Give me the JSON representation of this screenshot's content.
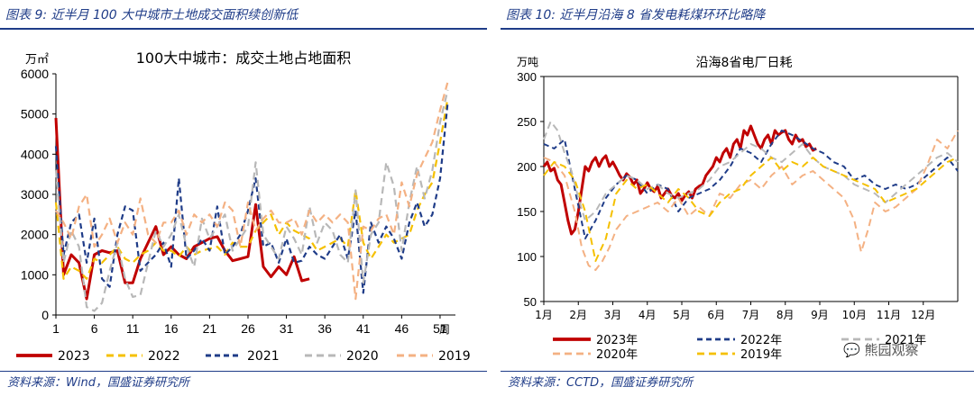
{
  "panels": [
    {
      "title": "图表 9:  近半月 100 大中城市土地成交面积续创新低",
      "source": "资料来源：Wind，国盛证券研究所"
    },
    {
      "title": "图表 10:  近半月沿海 8 省发电耗煤环环比略降",
      "source": "资料来源：CCTD，国盛证券研究所"
    }
  ],
  "watermark": "熊园观察",
  "chart_data": [
    {
      "type": "line",
      "title": "100大中城市：成交土地占地面积",
      "ylabel": "万㎡",
      "xlabel": "周",
      "xlim": [
        1,
        53
      ],
      "ylim": [
        0,
        6000
      ],
      "yticks": [
        0,
        1000,
        2000,
        3000,
        4000,
        5000,
        6000
      ],
      "xticks": [
        1,
        6,
        11,
        16,
        21,
        26,
        31,
        36,
        41,
        46,
        51
      ],
      "grid": false,
      "legend": "bottom",
      "series": [
        {
          "name": "2023",
          "color": "#c00000",
          "dash": "solid",
          "width": 3,
          "x": [
            1,
            2,
            3,
            4,
            5,
            6,
            7,
            8,
            9,
            10,
            11,
            12,
            13,
            14,
            15,
            16,
            17,
            18,
            19,
            20,
            21,
            22,
            23,
            24,
            25,
            26,
            27,
            28,
            29,
            30,
            31,
            32,
            33,
            34
          ],
          "y": [
            4900,
            1000,
            1500,
            1300,
            400,
            1500,
            1600,
            1550,
            1600,
            800,
            800,
            1400,
            1800,
            2200,
            1500,
            1700,
            1500,
            1400,
            1700,
            1800,
            1900,
            1950,
            1600,
            1350,
            1400,
            1450,
            2750,
            1200,
            950,
            1200,
            1000,
            1450,
            850,
            900
          ]
        },
        {
          "name": "2022",
          "color": "#f5c000",
          "dash": "8 5",
          "width": 2.2,
          "x": [
            1,
            2,
            3,
            4,
            5,
            6,
            7,
            8,
            9,
            10,
            11,
            12,
            13,
            14,
            15,
            16,
            17,
            18,
            19,
            20,
            21,
            22,
            23,
            24,
            25,
            26,
            27,
            28,
            29,
            30,
            31,
            32,
            33,
            34,
            35,
            36,
            37,
            38,
            39,
            40,
            41,
            42,
            43,
            44,
            45,
            46,
            47,
            48,
            49,
            50,
            51,
            52
          ],
          "y": [
            2800,
            900,
            1200,
            1100,
            900,
            1400,
            1300,
            1500,
            1700,
            1400,
            1300,
            1500,
            1600,
            1800,
            1600,
            1600,
            1450,
            1700,
            1500,
            1600,
            1650,
            1700,
            1500,
            1800,
            1700,
            1700,
            2100,
            2300,
            2500,
            2000,
            2300,
            2100,
            2000,
            1900,
            1600,
            1700,
            1800,
            1900,
            1700,
            3100,
            1800,
            1400,
            1700,
            2000,
            1800,
            1900,
            2000,
            2600,
            3000,
            3300,
            4300,
            5400
          ]
        },
        {
          "name": "2021",
          "color": "#1f3c88",
          "dash": "6 4",
          "width": 2.2,
          "x": [
            1,
            2,
            3,
            4,
            5,
            6,
            7,
            8,
            9,
            10,
            11,
            12,
            13,
            14,
            15,
            16,
            17,
            18,
            19,
            20,
            21,
            22,
            23,
            24,
            25,
            26,
            27,
            28,
            29,
            30,
            31,
            32,
            33,
            34,
            35,
            36,
            37,
            38,
            39,
            40,
            41,
            42,
            43,
            44,
            45,
            46,
            47,
            48,
            49,
            50,
            51,
            52
          ],
          "y": [
            4200,
            1500,
            2300,
            2500,
            1300,
            2400,
            900,
            700,
            2000,
            2700,
            2600,
            1100,
            1300,
            1500,
            1800,
            1200,
            3400,
            1400,
            1600,
            1900,
            1600,
            2700,
            1500,
            1700,
            2000,
            2600,
            3400,
            1700,
            1800,
            1300,
            1900,
            1300,
            1350,
            1700,
            1500,
            1400,
            1700,
            2000,
            1400,
            2600,
            550,
            2300,
            1800,
            2200,
            1900,
            1400,
            2300,
            2800,
            2200,
            2500,
            3400,
            5300
          ]
        },
        {
          "name": "2020",
          "color": "#b8b8b8",
          "dash": "8 5",
          "width": 2.2,
          "x": [
            1,
            2,
            3,
            4,
            5,
            6,
            7,
            8,
            9,
            10,
            11,
            12,
            13,
            14,
            15,
            16,
            17,
            18,
            19,
            20,
            21,
            22,
            23,
            24,
            25,
            26,
            27,
            28,
            29,
            30,
            31,
            32,
            33,
            34,
            35,
            36,
            37,
            38,
            39,
            40,
            41,
            42,
            43,
            44,
            45,
            46,
            47,
            48,
            49,
            50,
            51,
            52
          ],
          "y": [
            3600,
            1300,
            2100,
            1700,
            200,
            100,
            300,
            1100,
            1800,
            900,
            450,
            500,
            1300,
            2100,
            1700,
            2000,
            2500,
            1700,
            1200,
            2400,
            1900,
            2200,
            2500,
            1600,
            1900,
            2200,
            3800,
            2000,
            1700,
            1400,
            2200,
            1900,
            1500,
            2700,
            1800,
            2300,
            2100,
            1500,
            1300,
            3100,
            800,
            2000,
            2300,
            3800,
            3200,
            1600,
            2800,
            3700,
            2900,
            3600,
            4800,
            5600
          ]
        },
        {
          "name": "2019",
          "color": "#f4b183",
          "dash": "8 5",
          "width": 2.2,
          "x": [
            1,
            2,
            3,
            4,
            5,
            6,
            7,
            8,
            9,
            10,
            11,
            12,
            13,
            14,
            15,
            16,
            17,
            18,
            19,
            20,
            21,
            22,
            23,
            24,
            25,
            26,
            27,
            28,
            29,
            30,
            31,
            32,
            33,
            34,
            35,
            36,
            37,
            38,
            39,
            40,
            41,
            42,
            43,
            44,
            45,
            46,
            47,
            48,
            49,
            50,
            51,
            52
          ],
          "y": [
            2600,
            2300,
            1900,
            2700,
            3000,
            1700,
            2000,
            2400,
            1800,
            2300,
            2000,
            2900,
            2000,
            1800,
            2300,
            2300,
            2600,
            2000,
            2500,
            2300,
            2500,
            2200,
            2800,
            2600,
            1700,
            2800,
            2100,
            2400,
            2600,
            2300,
            2300,
            2400,
            2000,
            2600,
            2300,
            2500,
            2300,
            2500,
            2300,
            400,
            2200,
            2100,
            2400,
            2500,
            2000,
            3300,
            2700,
            3500,
            3900,
            4300,
            5100,
            5800
          ]
        }
      ]
    },
    {
      "type": "line",
      "title": "沿海8省电厂日耗",
      "ylabel": "万吨",
      "xlim": [
        1,
        13
      ],
      "ylim": [
        50,
        300
      ],
      "yticks": [
        50,
        100,
        150,
        200,
        250,
        300
      ],
      "categories": [
        "1月",
        "2月",
        "3月",
        "4月",
        "5月",
        "6月",
        "7月",
        "8月",
        "9月",
        "10月",
        "11月",
        "12月"
      ],
      "grid": false,
      "legend": "bottom",
      "series": [
        {
          "name": "2023年",
          "color": "#c00000",
          "dash": "solid",
          "width": 3,
          "x": [
            1,
            1.1,
            1.2,
            1.3,
            1.4,
            1.5,
            1.6,
            1.7,
            1.8,
            1.9,
            2.0,
            2.1,
            2.2,
            2.3,
            2.4,
            2.5,
            2.6,
            2.7,
            2.8,
            2.9,
            3.0,
            3.1,
            3.2,
            3.3,
            3.4,
            3.5,
            3.6,
            3.7,
            3.8,
            3.9,
            4.0,
            4.1,
            4.2,
            4.3,
            4.4,
            4.5,
            4.6,
            4.7,
            4.8,
            4.9,
            5.0,
            5.1,
            5.2,
            5.3,
            5.4,
            5.5,
            5.6,
            5.7,
            5.8,
            5.9,
            6.0,
            6.1,
            6.2,
            6.3,
            6.4,
            6.5,
            6.6,
            6.7,
            6.8,
            6.9,
            7.0,
            7.1,
            7.2,
            7.3,
            7.4,
            7.5,
            7.6,
            7.7,
            7.8,
            7.9,
            8.0,
            8.1,
            8.2,
            8.3,
            8.4,
            8.5,
            8.6,
            8.7,
            8.8,
            8.9
          ],
          "y": [
            200,
            205,
            195,
            198,
            185,
            180,
            160,
            140,
            125,
            130,
            150,
            175,
            200,
            195,
            205,
            210,
            200,
            208,
            212,
            200,
            205,
            198,
            190,
            185,
            192,
            188,
            180,
            185,
            170,
            175,
            182,
            175,
            172,
            178,
            165,
            170,
            175,
            168,
            165,
            170,
            162,
            168,
            172,
            165,
            175,
            178,
            180,
            190,
            195,
            200,
            210,
            205,
            215,
            220,
            210,
            225,
            230,
            220,
            240,
            235,
            245,
            235,
            225,
            220,
            230,
            235,
            225,
            240,
            235,
            238,
            240,
            230,
            225,
            235,
            228,
            230,
            222,
            225,
            218,
            220
          ]
        },
        {
          "name": "2022年",
          "color": "#1f3c88",
          "dash": "6 4",
          "width": 2,
          "x": [
            1,
            1.3,
            1.6,
            1.9,
            2.2,
            2.5,
            2.8,
            3.1,
            3.4,
            3.7,
            4.0,
            4.3,
            4.6,
            4.9,
            5.2,
            5.5,
            5.8,
            6.1,
            6.4,
            6.7,
            7.0,
            7.3,
            7.6,
            7.9,
            8.2,
            8.5,
            8.8,
            9.1,
            9.4,
            9.7,
            10.0,
            10.3,
            10.6,
            10.9,
            11.2,
            11.5,
            11.8,
            12.1,
            12.4,
            12.7,
            13.0
          ],
          "y": [
            225,
            220,
            230,
            175,
            120,
            140,
            165,
            180,
            190,
            185,
            170,
            180,
            175,
            150,
            165,
            170,
            175,
            185,
            200,
            220,
            215,
            205,
            225,
            240,
            235,
            228,
            220,
            215,
            205,
            200,
            185,
            190,
            180,
            175,
            180,
            175,
            180,
            190,
            200,
            210,
            195
          ]
        },
        {
          "name": "2020年",
          "color": "#f4b183",
          "dash": "8 5",
          "width": 2,
          "x": [
            1,
            1.3,
            1.6,
            1.9,
            2.1,
            2.3,
            2.5,
            2.7,
            2.9,
            3.1,
            3.4,
            3.7,
            4.0,
            4.3,
            4.6,
            4.9,
            5.2,
            5.5,
            5.8,
            6.1,
            6.4,
            6.7,
            7.0,
            7.3,
            7.6,
            7.9,
            8.2,
            8.5,
            8.8,
            9.1,
            9.4,
            9.7,
            10.0,
            10.2,
            10.4,
            10.6,
            10.9,
            11.2,
            11.5,
            11.8,
            12.1,
            12.4,
            12.7,
            13.0
          ],
          "y": [
            210,
            205,
            190,
            150,
            110,
            90,
            85,
            95,
            110,
            130,
            145,
            150,
            155,
            160,
            150,
            165,
            145,
            155,
            145,
            170,
            165,
            180,
            185,
            175,
            190,
            200,
            180,
            190,
            195,
            185,
            175,
            165,
            140,
            105,
            130,
            160,
            150,
            155,
            165,
            175,
            200,
            230,
            220,
            240
          ]
        },
        {
          "name": "2021年",
          "color": "#b8b8b8",
          "dash": "8 5",
          "width": 2,
          "x": [
            1,
            1.2,
            1.4,
            1.6,
            1.8,
            2.0,
            2.2,
            2.5,
            2.8,
            3.1,
            3.4,
            3.7,
            4.0,
            4.3,
            4.6,
            4.9,
            5.2,
            5.5,
            5.8,
            6.1,
            6.4,
            6.7,
            7.0,
            7.3,
            7.6,
            7.9,
            8.2,
            8.5,
            8.8,
            9.1,
            9.4,
            9.7,
            10.0,
            10.3,
            10.6,
            10.9,
            11.2,
            11.5,
            11.8,
            12.1,
            12.4,
            12.7,
            13.0
          ],
          "y": [
            230,
            250,
            240,
            215,
            195,
            165,
            140,
            150,
            170,
            180,
            190,
            185,
            175,
            180,
            170,
            165,
            170,
            175,
            185,
            200,
            205,
            215,
            225,
            220,
            210,
            205,
            215,
            225,
            210,
            200,
            195,
            190,
            180,
            175,
            170,
            160,
            170,
            180,
            190,
            200,
            210,
            215,
            205
          ]
        },
        {
          "name": "2019年",
          "color": "#f5c000",
          "dash": "8 5",
          "width": 2,
          "x": [
            1,
            1.3,
            1.6,
            1.9,
            2.2,
            2.5,
            2.8,
            3.1,
            3.4,
            3.7,
            4.0,
            4.3,
            4.6,
            4.9,
            5.2,
            5.5,
            5.8,
            6.1,
            6.4,
            6.7,
            7.0,
            7.3,
            7.6,
            7.9,
            8.2,
            8.5,
            8.8,
            9.1,
            9.4,
            9.7,
            10.0,
            10.3,
            10.6,
            10.9,
            11.2,
            11.5,
            11.8,
            12.1,
            12.4,
            12.7,
            13.0
          ],
          "y": [
            190,
            205,
            200,
            185,
            150,
            95,
            120,
            170,
            185,
            175,
            180,
            170,
            160,
            175,
            165,
            150,
            145,
            160,
            170,
            175,
            190,
            200,
            210,
            195,
            205,
            200,
            210,
            200,
            195,
            190,
            185,
            180,
            175,
            160,
            165,
            170,
            175,
            185,
            195,
            205,
            210
          ]
        }
      ]
    }
  ]
}
